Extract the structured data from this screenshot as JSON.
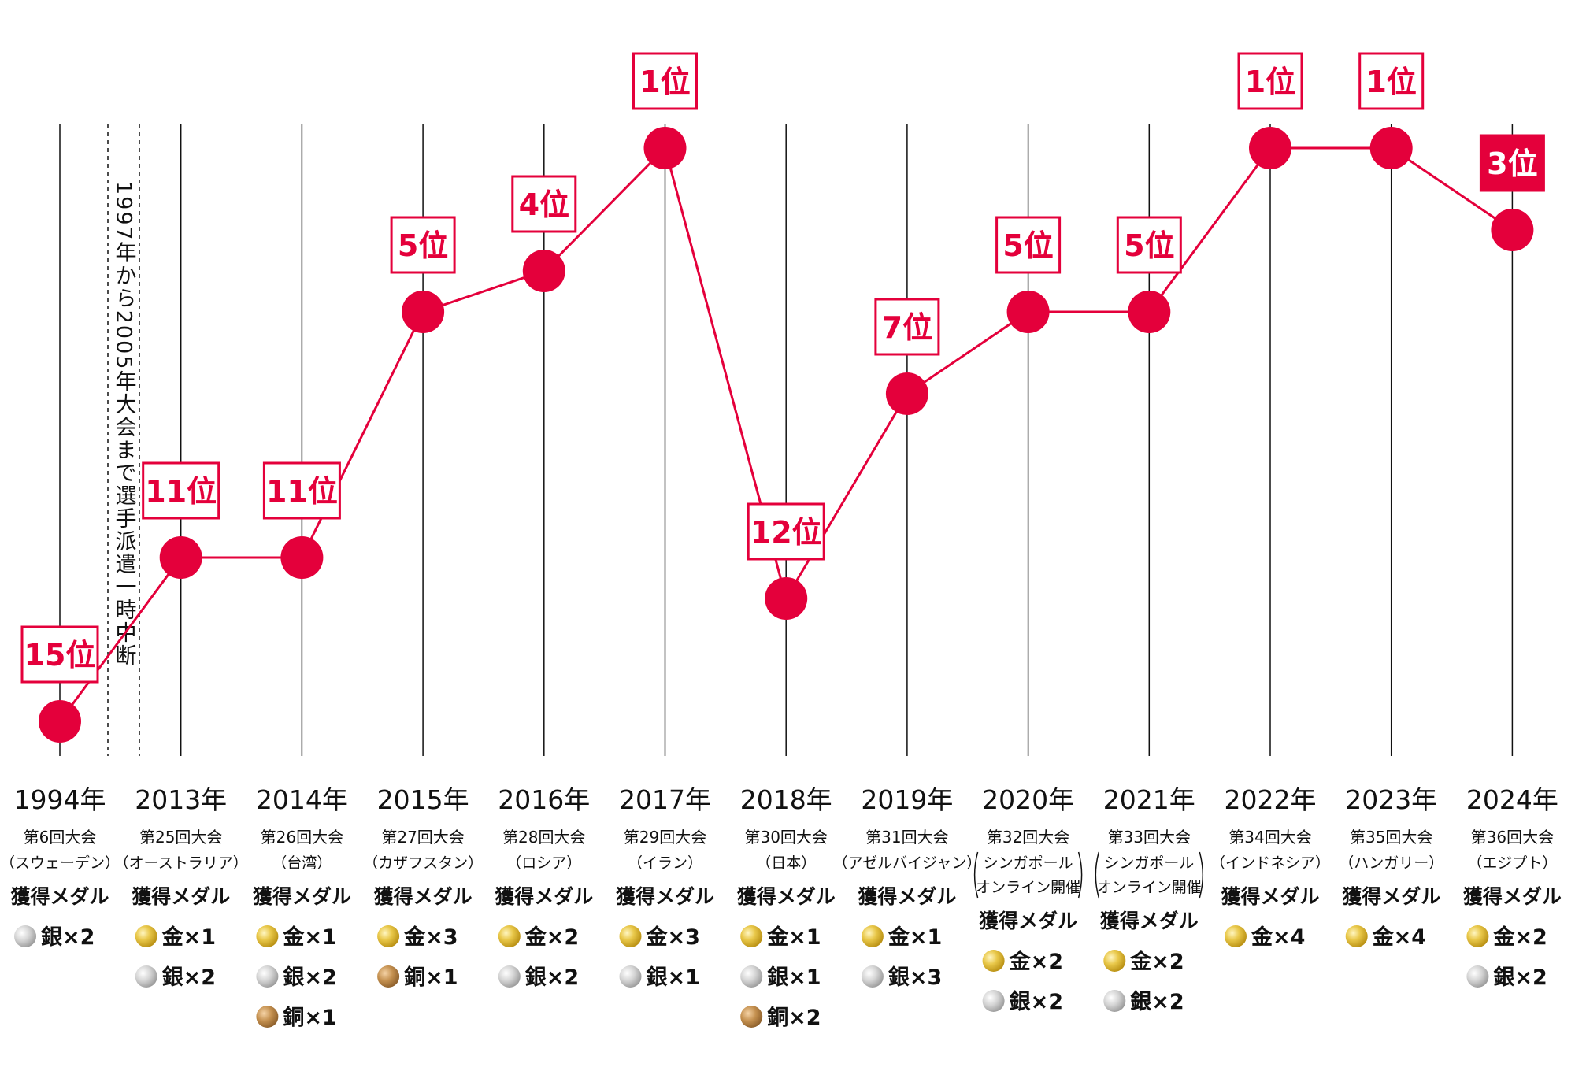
{
  "colors": {
    "accent": "#E4003B",
    "axis_line": "#111111",
    "text": "#111111",
    "gold": "#D8B024",
    "silver": "#BDBDBD",
    "bronze": "#B8864A"
  },
  "chart_data": {
    "type": "line",
    "title": "",
    "xlabel": "",
    "ylabel": "",
    "y_axis": "rank (inverted, 1 at top)",
    "grid": "vertical lines per year",
    "gap_note": "1997年から2005年大会まで選手派遣一時中断",
    "points": [
      {
        "year": "1994年",
        "edition": "第6回大会",
        "host": "（スウェーデン）",
        "host_lines": [],
        "rank": 15,
        "rank_label": "15位",
        "highlight": false,
        "medal_heading": "獲得メダル",
        "medals": [
          {
            "type": "silver",
            "label": "銀×2"
          }
        ]
      },
      {
        "year": "2013年",
        "edition": "第25回大会",
        "host": "（オーストラリア）",
        "host_lines": [],
        "rank": 11,
        "rank_label": "11位",
        "highlight": false,
        "medal_heading": "獲得メダル",
        "medals": [
          {
            "type": "gold",
            "label": "金×1"
          },
          {
            "type": "silver",
            "label": "銀×2"
          }
        ]
      },
      {
        "year": "2014年",
        "edition": "第26回大会",
        "host": "（台湾）",
        "host_lines": [],
        "rank": 11,
        "rank_label": "11位",
        "highlight": false,
        "medal_heading": "獲得メダル",
        "medals": [
          {
            "type": "gold",
            "label": "金×1"
          },
          {
            "type": "silver",
            "label": "銀×2"
          },
          {
            "type": "bronze",
            "label": "銅×1"
          }
        ]
      },
      {
        "year": "2015年",
        "edition": "第27回大会",
        "host": "（カザフスタン）",
        "host_lines": [],
        "rank": 5,
        "rank_label": "5位",
        "highlight": false,
        "medal_heading": "獲得メダル",
        "medals": [
          {
            "type": "gold",
            "label": "金×3"
          },
          {
            "type": "bronze",
            "label": "銅×1"
          }
        ]
      },
      {
        "year": "2016年",
        "edition": "第28回大会",
        "host": "（ロシア）",
        "host_lines": [],
        "rank": 4,
        "rank_label": "4位",
        "highlight": false,
        "medal_heading": "獲得メダル",
        "medals": [
          {
            "type": "gold",
            "label": "金×2"
          },
          {
            "type": "silver",
            "label": "銀×2"
          }
        ]
      },
      {
        "year": "2017年",
        "edition": "第29回大会",
        "host": "（イラン）",
        "host_lines": [],
        "rank": 1,
        "rank_label": "1位",
        "highlight": false,
        "medal_heading": "獲得メダル",
        "medals": [
          {
            "type": "gold",
            "label": "金×3"
          },
          {
            "type": "silver",
            "label": "銀×1"
          }
        ]
      },
      {
        "year": "2018年",
        "edition": "第30回大会",
        "host": "（日本）",
        "host_lines": [],
        "rank": 12,
        "rank_label": "12位",
        "highlight": false,
        "medal_heading": "獲得メダル",
        "medals": [
          {
            "type": "gold",
            "label": "金×1"
          },
          {
            "type": "silver",
            "label": "銀×1"
          },
          {
            "type": "bronze",
            "label": "銅×2"
          }
        ]
      },
      {
        "year": "2019年",
        "edition": "第31回大会",
        "host": "（アゼルバイジャン）",
        "host_lines": [],
        "rank": 7,
        "rank_label": "7位",
        "highlight": false,
        "medal_heading": "獲得メダル",
        "medals": [
          {
            "type": "gold",
            "label": "金×1"
          },
          {
            "type": "silver",
            "label": "銀×3"
          }
        ]
      },
      {
        "year": "2020年",
        "edition": "第32回大会",
        "host": "",
        "host_lines": [
          "シンガポール",
          "オンライン開催"
        ],
        "rank": 5,
        "rank_label": "5位",
        "highlight": false,
        "medal_heading": "獲得メダル",
        "medals": [
          {
            "type": "gold",
            "label": "金×2"
          },
          {
            "type": "silver",
            "label": "銀×2"
          }
        ]
      },
      {
        "year": "2021年",
        "edition": "第33回大会",
        "host": "",
        "host_lines": [
          "シンガポール",
          "オンライン開催"
        ],
        "rank": 5,
        "rank_label": "5位",
        "highlight": false,
        "medal_heading": "獲得メダル",
        "medals": [
          {
            "type": "gold",
            "label": "金×2"
          },
          {
            "type": "silver",
            "label": "銀×2"
          }
        ]
      },
      {
        "year": "2022年",
        "edition": "第34回大会",
        "host": "（インドネシア）",
        "host_lines": [],
        "rank": 1,
        "rank_label": "1位",
        "highlight": false,
        "medal_heading": "獲得メダル",
        "medals": [
          {
            "type": "gold",
            "label": "金×4"
          }
        ]
      },
      {
        "year": "2023年",
        "edition": "第35回大会",
        "host": "（ハンガリー）",
        "host_lines": [],
        "rank": 1,
        "rank_label": "1位",
        "highlight": false,
        "medal_heading": "獲得メダル",
        "medals": [
          {
            "type": "gold",
            "label": "金×4"
          }
        ]
      },
      {
        "year": "2024年",
        "edition": "第36回大会",
        "host": "（エジプト）",
        "host_lines": [],
        "rank": 3,
        "rank_label": "3位",
        "highlight": true,
        "medal_heading": "獲得メダル",
        "medals": [
          {
            "type": "gold",
            "label": "金×2"
          },
          {
            "type": "silver",
            "label": "銀×2"
          }
        ]
      }
    ]
  }
}
